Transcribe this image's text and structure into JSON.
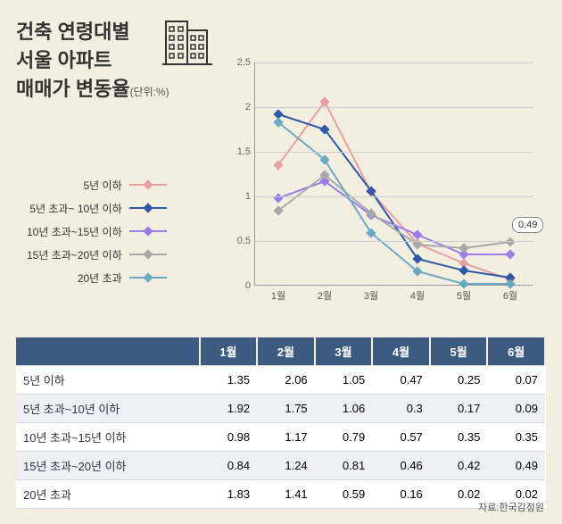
{
  "title": {
    "line1": "건축 연령대별",
    "line2": "서울 아파트",
    "line3": "매매가 변동율",
    "unit": "(단위:%)",
    "fontsize": 22,
    "color": "#333333"
  },
  "chart": {
    "type": "line",
    "background_color": "#f3eee0",
    "grid_color": "#cccccc",
    "axis_color": "#999999",
    "ylim": [
      0,
      2.5
    ],
    "ytick_step": 0.5,
    "yticks": [
      "0",
      "0.5",
      "1",
      "1.5",
      "2",
      "2.5"
    ],
    "xticks": [
      "1월",
      "2월",
      "3월",
      "4월",
      "5월",
      "6월"
    ],
    "line_width": 2,
    "marker_size": 8,
    "callout": {
      "label": "0.49",
      "series_index": 3,
      "point_index": 5
    },
    "series": [
      {
        "name": "5년 이하",
        "color": "#e8a0a0",
        "values": [
          1.35,
          2.06,
          1.05,
          0.47,
          0.25,
          0.07
        ]
      },
      {
        "name": "5년 초과~ 10년 이하",
        "color": "#2e5aa8",
        "values": [
          1.92,
          1.75,
          1.06,
          0.3,
          0.17,
          0.09
        ]
      },
      {
        "name": "10년 초과~15년 이하",
        "color": "#9a7ee8",
        "values": [
          0.98,
          1.17,
          0.79,
          0.57,
          0.35,
          0.35
        ]
      },
      {
        "name": "15년 초과~20년 이하",
        "color": "#a8a8a8",
        "values": [
          0.84,
          1.24,
          0.81,
          0.46,
          0.42,
          0.49
        ]
      },
      {
        "name": "20년 초과",
        "color": "#6aa9c4",
        "values": [
          1.83,
          1.41,
          0.59,
          0.16,
          0.02,
          0.02
        ]
      }
    ]
  },
  "table": {
    "header_bg": "#3d5a80",
    "header_fg": "#ffffff",
    "row_alt_bg": "#eef0f5",
    "border_color": "#d0d6e0",
    "columns": [
      "",
      "1월",
      "2월",
      "3월",
      "4월",
      "5월",
      "6월"
    ],
    "rows": [
      [
        "5년 이하",
        "1.35",
        "2.06",
        "1.05",
        "0.47",
        "0.25",
        "0.07"
      ],
      [
        "5년 초과~10년 이하",
        "1.92",
        "1.75",
        "1.06",
        "0.3",
        "0.17",
        "0.09"
      ],
      [
        "10년 초과~15년 이하",
        "0.98",
        "1.17",
        "0.79",
        "0.57",
        "0.35",
        "0.35"
      ],
      [
        "15년 초과~20년 이하",
        "0.84",
        "1.24",
        "0.81",
        "0.46",
        "0.42",
        "0.49"
      ],
      [
        "20년 초과",
        "1.83",
        "1.41",
        "0.59",
        "0.16",
        "0.02",
        "0.02"
      ]
    ]
  },
  "source": {
    "label": "자료:한국감정원"
  }
}
